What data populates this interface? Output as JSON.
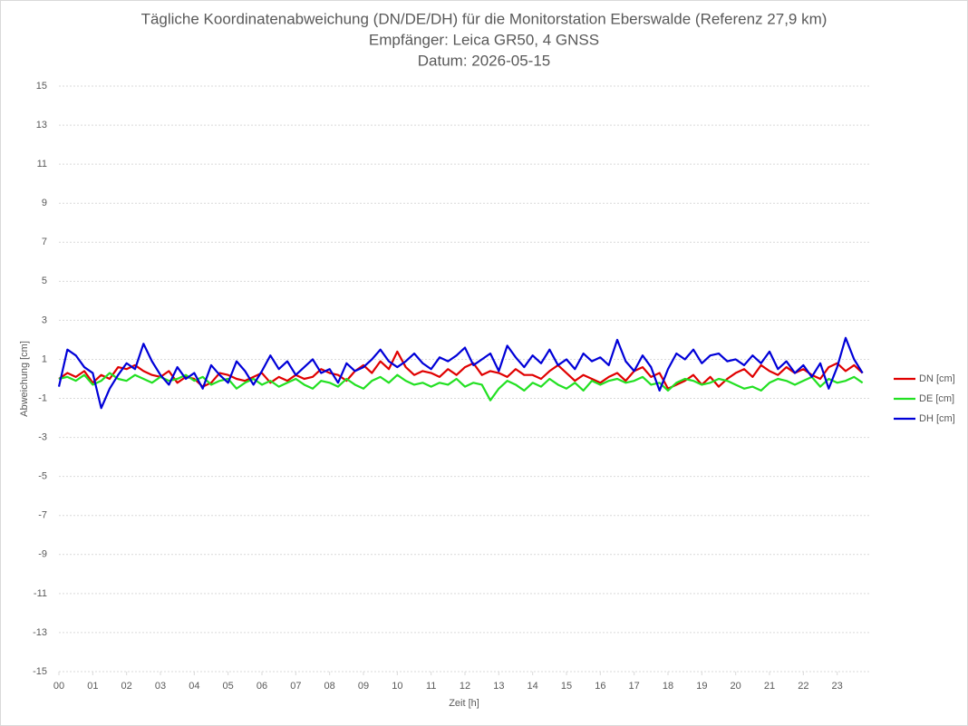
{
  "chart_data": {
    "type": "line",
    "title": "Tägliche Koordinatenabweichung (DN/DE/DH) für die Monitorstation Eberswalde (Referenz 27,9 km)",
    "subtitle": [
      "Empfänger: Leica GR50, 4 GNSS",
      "Datum: 2026-05-15"
    ],
    "x_label": "Zeit [h]",
    "y_label": "Abweichung [cm]",
    "xlim": [
      0,
      24
    ],
    "xticks": [
      {
        "value": 0,
        "label": "00"
      },
      {
        "value": 1,
        "label": "01"
      },
      {
        "value": 2,
        "label": "02"
      },
      {
        "value": 3,
        "label": "03"
      },
      {
        "value": 4,
        "label": "04"
      },
      {
        "value": 5,
        "label": "05"
      },
      {
        "value": 6,
        "label": "06"
      },
      {
        "value": 7,
        "label": "07"
      },
      {
        "value": 8,
        "label": "08"
      },
      {
        "value": 9,
        "label": "09"
      },
      {
        "value": 10,
        "label": "10"
      },
      {
        "value": 11,
        "label": "11"
      },
      {
        "value": 12,
        "label": "12"
      },
      {
        "value": 13,
        "label": "13"
      },
      {
        "value": 14,
        "label": "14"
      },
      {
        "value": 15,
        "label": "15"
      },
      {
        "value": 16,
        "label": "16"
      },
      {
        "value": 17,
        "label": "17"
      },
      {
        "value": 18,
        "label": "18"
      },
      {
        "value": 19,
        "label": "19"
      },
      {
        "value": 20,
        "label": "20"
      },
      {
        "value": 21,
        "label": "21"
      },
      {
        "value": 22,
        "label": "22"
      },
      {
        "value": 23,
        "label": "23"
      }
    ],
    "ylim": [
      -15,
      15
    ],
    "yticks": [
      -15,
      -13,
      -11,
      -9,
      -7,
      -5,
      -3,
      -1,
      1,
      3,
      5,
      7,
      9,
      11,
      13,
      15
    ],
    "grid": true,
    "legend": "right",
    "x": [
      0,
      0.25,
      0.5,
      0.75,
      1,
      1.25,
      1.5,
      1.75,
      2,
      2.25,
      2.5,
      2.75,
      3,
      3.25,
      3.5,
      3.75,
      4,
      4.25,
      4.5,
      4.75,
      5,
      5.25,
      5.5,
      5.75,
      6,
      6.25,
      6.5,
      6.75,
      7,
      7.25,
      7.5,
      7.75,
      8,
      8.25,
      8.5,
      8.75,
      9,
      9.25,
      9.5,
      9.75,
      10,
      10.25,
      10.5,
      10.75,
      11,
      11.25,
      11.5,
      11.75,
      12,
      12.25,
      12.5,
      12.75,
      13,
      13.25,
      13.5,
      13.75,
      14,
      14.25,
      14.5,
      14.75,
      15,
      15.25,
      15.5,
      15.75,
      16,
      16.25,
      16.5,
      16.75,
      17,
      17.25,
      17.5,
      17.75,
      18,
      18.25,
      18.5,
      18.75,
      19,
      19.25,
      19.5,
      19.75,
      20,
      20.25,
      20.5,
      20.75,
      21,
      21.25,
      21.5,
      21.75,
      22,
      22.25,
      22.5,
      22.75,
      23,
      23.25,
      23.5,
      23.75
    ],
    "series": [
      {
        "name": "DN [cm]",
        "color": "#e00000",
        "values": [
          0.0,
          0.3,
          0.1,
          0.4,
          -0.2,
          0.2,
          0.0,
          0.6,
          0.5,
          0.7,
          0.4,
          0.2,
          0.1,
          0.4,
          -0.2,
          0.1,
          0.0,
          -0.4,
          -0.2,
          0.3,
          0.2,
          0.0,
          -0.1,
          0.1,
          0.3,
          -0.2,
          0.1,
          -0.1,
          0.2,
          0.0,
          0.1,
          0.5,
          0.3,
          0.2,
          -0.1,
          0.4,
          0.7,
          0.3,
          0.9,
          0.5,
          1.4,
          0.6,
          0.2,
          0.4,
          0.3,
          0.1,
          0.5,
          0.2,
          0.6,
          0.8,
          0.2,
          0.4,
          0.3,
          0.1,
          0.5,
          0.2,
          0.2,
          0.0,
          0.4,
          0.7,
          0.3,
          -0.1,
          0.2,
          0.0,
          -0.2,
          0.1,
          0.3,
          -0.1,
          0.4,
          0.6,
          0.1,
          0.3,
          -0.5,
          -0.3,
          -0.1,
          0.2,
          -0.3,
          0.1,
          -0.4,
          0.0,
          0.3,
          0.5,
          0.1,
          0.7,
          0.4,
          0.2,
          0.6,
          0.3,
          0.5,
          0.2,
          0.0,
          0.6,
          0.8,
          0.4,
          0.7,
          0.3
        ]
      },
      {
        "name": "DE [cm]",
        "color": "#22e022",
        "values": [
          0.0,
          0.1,
          -0.1,
          0.2,
          -0.3,
          -0.1,
          0.3,
          0.0,
          -0.1,
          0.2,
          0.0,
          -0.2,
          0.1,
          -0.1,
          0.0,
          0.2,
          -0.1,
          0.1,
          -0.3,
          -0.1,
          0.0,
          -0.5,
          -0.2,
          0.0,
          -0.3,
          -0.1,
          -0.4,
          -0.2,
          0.0,
          -0.3,
          -0.5,
          -0.1,
          -0.2,
          -0.4,
          0.0,
          -0.3,
          -0.5,
          -0.1,
          0.1,
          -0.2,
          0.2,
          -0.1,
          -0.3,
          -0.2,
          -0.4,
          -0.2,
          -0.3,
          0.0,
          -0.4,
          -0.2,
          -0.3,
          -1.1,
          -0.5,
          -0.1,
          -0.3,
          -0.6,
          -0.2,
          -0.4,
          0.0,
          -0.3,
          -0.5,
          -0.2,
          -0.6,
          -0.1,
          -0.3,
          -0.1,
          0.0,
          -0.2,
          -0.1,
          0.1,
          -0.3,
          -0.2,
          -0.6,
          -0.2,
          0.0,
          -0.1,
          -0.3,
          -0.2,
          0.0,
          -0.1,
          -0.3,
          -0.5,
          -0.4,
          -0.6,
          -0.2,
          0.0,
          -0.1,
          -0.3,
          -0.1,
          0.1,
          -0.4,
          0.0,
          -0.2,
          -0.1,
          0.1,
          -0.2
        ]
      },
      {
        "name": "DH [cm]",
        "color": "#0000d8",
        "values": [
          -0.4,
          1.5,
          1.2,
          0.6,
          0.3,
          -1.5,
          -0.5,
          0.2,
          0.8,
          0.5,
          1.8,
          0.9,
          0.2,
          -0.3,
          0.6,
          0.0,
          0.3,
          -0.5,
          0.7,
          0.2,
          -0.2,
          0.9,
          0.4,
          -0.3,
          0.4,
          1.2,
          0.5,
          0.9,
          0.2,
          0.6,
          1.0,
          0.3,
          0.5,
          -0.2,
          0.8,
          0.4,
          0.6,
          1.0,
          1.5,
          0.9,
          0.6,
          0.9,
          1.3,
          0.8,
          0.5,
          1.1,
          0.9,
          1.2,
          1.6,
          0.7,
          1.0,
          1.3,
          0.4,
          1.7,
          1.1,
          0.6,
          1.2,
          0.8,
          1.5,
          0.7,
          1.0,
          0.5,
          1.3,
          0.9,
          1.1,
          0.7,
          2.0,
          0.9,
          0.4,
          1.2,
          0.6,
          -0.6,
          0.5,
          1.3,
          1.0,
          1.5,
          0.8,
          1.2,
          1.3,
          0.9,
          1.0,
          0.7,
          1.2,
          0.8,
          1.4,
          0.5,
          0.9,
          0.3,
          0.7,
          0.1,
          0.8,
          -0.5,
          0.6,
          2.1,
          1.0,
          0.3
        ]
      }
    ]
  }
}
